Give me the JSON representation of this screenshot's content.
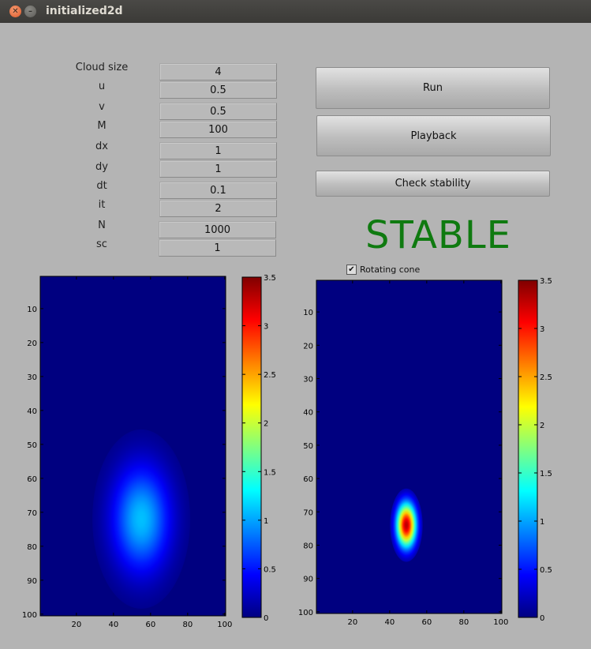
{
  "window": {
    "title": "initialized2d"
  },
  "params": [
    {
      "name": "cloud-size",
      "label": "Cloud size",
      "value": "4"
    },
    {
      "name": "u",
      "label": "u",
      "value": "0.5"
    },
    {
      "name": "v",
      "label": "v",
      "value": "0.5"
    },
    {
      "name": "m",
      "label": "M",
      "value": "100"
    },
    {
      "name": "dx",
      "label": "dx",
      "value": "1"
    },
    {
      "name": "dy",
      "label": "dy",
      "value": "1"
    },
    {
      "name": "dt",
      "label": "dt",
      "value": "0.1"
    },
    {
      "name": "it",
      "label": "it",
      "value": "2"
    },
    {
      "name": "n",
      "label": "N",
      "value": "1000"
    },
    {
      "name": "sc",
      "label": "sc",
      "value": "1"
    }
  ],
  "buttons": {
    "run": "Run",
    "playback": "Playback",
    "check": "Check stability"
  },
  "status": {
    "text": "STABLE",
    "color": "#0f7a10"
  },
  "checkbox": {
    "label": "Rotating cone",
    "checked": true,
    "mark": "✔"
  },
  "colormap": "jet",
  "chart_data": [
    {
      "type": "heatmap",
      "title": "",
      "xlabel": "",
      "ylabel": "",
      "xlim": [
        1,
        100
      ],
      "ylim": [
        1,
        100
      ],
      "xticks": [
        20,
        40,
        60,
        80,
        100
      ],
      "yticks": [
        10,
        20,
        30,
        40,
        50,
        60,
        70,
        80,
        90,
        100
      ],
      "peak": {
        "x": 55,
        "y": 72,
        "value": 1.1
      },
      "spread": {
        "x": 12,
        "y": 12
      },
      "colorbar": {
        "min": 0,
        "max": 3.5,
        "ticks": [
          "0",
          "0.5",
          "1",
          "1.5",
          "2",
          "2.5",
          "3",
          "3.5"
        ]
      }
    },
    {
      "type": "heatmap",
      "title": "",
      "xlabel": "",
      "ylabel": "",
      "xlim": [
        1,
        100
      ],
      "ylim": [
        1,
        100
      ],
      "xticks": [
        20,
        40,
        60,
        80,
        100
      ],
      "yticks": [
        10,
        20,
        30,
        40,
        50,
        60,
        70,
        80,
        90,
        100
      ],
      "peak": {
        "x": 49,
        "y": 74,
        "value": 3.3
      },
      "spread": {
        "x": 4,
        "y": 5
      },
      "colorbar": {
        "min": 0,
        "max": 3.5,
        "ticks": [
          "0",
          "0.5",
          "1",
          "1.5",
          "2",
          "2.5",
          "3",
          "3.5"
        ]
      }
    }
  ]
}
